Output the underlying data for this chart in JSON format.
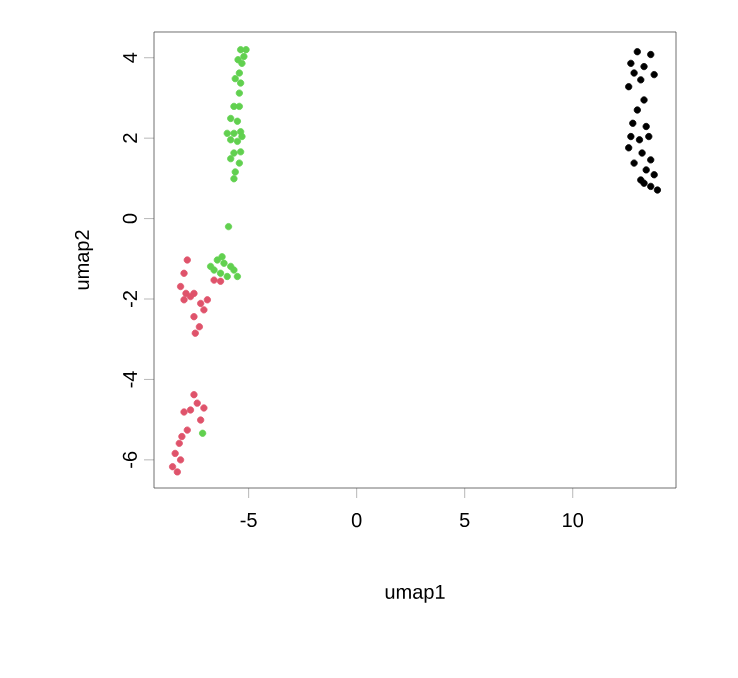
{
  "chart_data": {
    "type": "scatter",
    "xlabel": "umap1",
    "ylabel": "umap2",
    "marker": "circle",
    "xlim": [
      -9.38,
      14.78
    ],
    "ylim": [
      -6.7,
      4.64
    ],
    "xticks": [
      -5,
      0,
      5,
      10
    ],
    "yticks": [
      -6,
      -4,
      -2,
      0,
      2,
      4
    ],
    "series": [
      {
        "color": "#000000",
        "x": [
          12.99,
          13.61,
          12.69,
          13.3,
          12.84,
          13.77,
          13.15,
          12.59,
          13.3,
          12.99,
          12.78,
          13.4,
          12.69,
          13.09,
          13.52,
          12.59,
          13.21,
          13.61,
          12.84,
          13.4,
          13.77,
          13.15,
          13.61,
          13.92,
          13.3
        ],
        "values": [
          4.15,
          4.08,
          3.86,
          3.78,
          3.62,
          3.58,
          3.45,
          3.28,
          2.95,
          2.7,
          2.37,
          2.29,
          2.04,
          1.96,
          2.04,
          1.76,
          1.63,
          1.46,
          1.38,
          1.21,
          1.09,
          0.96,
          0.8,
          0.71,
          0.88
        ]
      },
      {
        "color": "#df536b",
        "x": [
          -7.84,
          -7.99,
          -8.15,
          -7.9,
          -7.69,
          -7.99,
          -7.53,
          -7.22,
          -6.91,
          -7.07,
          -7.53,
          -7.28,
          -7.47,
          -6.6,
          -6.3,
          -7.53,
          -7.38,
          -7.69,
          -7.07,
          -7.22,
          -7.99,
          -7.84,
          -8.09,
          -8.21,
          -8.4,
          -8.15,
          -8.52,
          -8.3
        ],
        "values": [
          -1.03,
          -1.36,
          -1.69,
          -1.86,
          -1.94,
          -2.02,
          -1.86,
          -2.11,
          -2.02,
          -2.27,
          -2.44,
          -2.69,
          -2.85,
          -1.53,
          -1.56,
          -4.38,
          -4.59,
          -4.76,
          -4.71,
          -5.01,
          -4.81,
          -5.26,
          -5.42,
          -5.59,
          -5.84,
          -6.0,
          -6.17,
          -6.3
        ]
      },
      {
        "color": "#61d04f",
        "x": [
          -5.37,
          -5.12,
          -5.22,
          -5.49,
          -5.31,
          -5.43,
          -5.62,
          -5.37,
          -5.43,
          -5.68,
          -5.43,
          -5.83,
          -5.52,
          -5.99,
          -5.68,
          -5.37,
          -5.83,
          -5.52,
          -5.31,
          -5.68,
          -5.37,
          -5.83,
          -5.43,
          -5.62,
          -5.68,
          -5.93,
          -6.76,
          -6.45,
          -6.23,
          -6.6,
          -6.14,
          -5.83,
          -6.3,
          -5.68,
          -5.52,
          -5.99,
          -7.13
        ],
        "values": [
          4.2,
          4.2,
          4.03,
          3.95,
          3.86,
          3.62,
          3.48,
          3.37,
          3.12,
          2.79,
          2.79,
          2.49,
          2.42,
          2.12,
          2.12,
          2.16,
          1.96,
          1.92,
          2.04,
          1.63,
          1.66,
          1.49,
          1.38,
          1.16,
          0.99,
          -0.2,
          -1.19,
          -1.03,
          -0.95,
          -1.28,
          -1.11,
          -1.19,
          -1.36,
          -1.28,
          -1.44,
          -1.44,
          -5.34
        ]
      }
    ]
  }
}
